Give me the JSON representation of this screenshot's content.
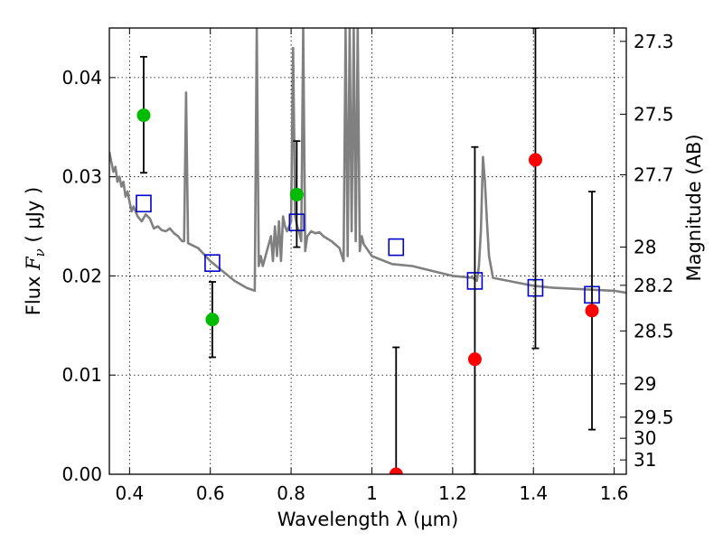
{
  "chart_data": {
    "type": "scatter",
    "xlabel": "Wavelength  λ (μm)",
    "ylabel": "Flux  F_ν  ( μJy )",
    "ylabel_parts": {
      "prefix": "Flux  ",
      "symbol": "F",
      "subscript": "ν",
      "suffix": "  ( μJy )"
    },
    "y2label": "Magnitude (AB)",
    "xlim": [
      0.35,
      1.63
    ],
    "ylim": [
      0.0,
      0.045
    ],
    "grid": true,
    "x_ticks": [
      0.4,
      0.6,
      0.8,
      1.0,
      1.2,
      1.4,
      1.6
    ],
    "x_tick_labels": [
      "0.4",
      "0.6",
      "0.8",
      "1",
      "1.2",
      "1.4",
      "1.6"
    ],
    "y_ticks": [
      0.0,
      0.01,
      0.02,
      0.03,
      0.04
    ],
    "y_tick_labels": [
      "0.00",
      "0.01",
      "0.02",
      "0.03",
      "0.04"
    ],
    "mag_ticks": [
      27.3,
      27.5,
      27.7,
      28,
      28.2,
      28.5,
      29,
      29.5,
      30,
      31
    ],
    "mag_tick_labels": [
      "27.3",
      "27.5",
      "27.7",
      "28",
      "28.2",
      "28.5",
      "29",
      "29.5",
      "30",
      "31"
    ],
    "colors": {
      "model": "#808080",
      "green": "#00bb00",
      "red": "#ff0000",
      "square": "#0000cc",
      "errorbar": "#000000",
      "grid": "#000000"
    },
    "model_spectrum": {
      "x": [
        0.35,
        0.355,
        0.36,
        0.365,
        0.37,
        0.375,
        0.38,
        0.385,
        0.39,
        0.395,
        0.4,
        0.405,
        0.41,
        0.42,
        0.43,
        0.44,
        0.45,
        0.46,
        0.47,
        0.48,
        0.49,
        0.5,
        0.51,
        0.52,
        0.53,
        0.535,
        0.54,
        0.545,
        0.55,
        0.57,
        0.6,
        0.63,
        0.66,
        0.69,
        0.71,
        0.715,
        0.72,
        0.725,
        0.73,
        0.74,
        0.75,
        0.755,
        0.76,
        0.765,
        0.77,
        0.775,
        0.78,
        0.785,
        0.79,
        0.795,
        0.8,
        0.805,
        0.81,
        0.815,
        0.82,
        0.825,
        0.83,
        0.835,
        0.84,
        0.85,
        0.86,
        0.87,
        0.88,
        0.9,
        0.92,
        0.93,
        0.935,
        0.94,
        0.945,
        0.95,
        0.955,
        0.96,
        0.965,
        0.97,
        0.975,
        0.98,
        1.0,
        1.05,
        1.1,
        1.15,
        1.2,
        1.25,
        1.26,
        1.265,
        1.27,
        1.275,
        1.28,
        1.285,
        1.29,
        1.3,
        1.35,
        1.4,
        1.45,
        1.5,
        1.55,
        1.6,
        1.63
      ],
      "y": [
        0.0325,
        0.0315,
        0.0305,
        0.031,
        0.0295,
        0.03,
        0.029,
        0.0295,
        0.028,
        0.0285,
        0.0275,
        0.0265,
        0.027,
        0.026,
        0.0255,
        0.0262,
        0.0258,
        0.0248,
        0.025,
        0.0246,
        0.0245,
        0.0248,
        0.0243,
        0.024,
        0.0235,
        0.0235,
        0.0385,
        0.0233,
        0.0232,
        0.0228,
        0.0215,
        0.0205,
        0.0195,
        0.0188,
        0.0185,
        0.045,
        0.021,
        0.022,
        0.021,
        0.0225,
        0.024,
        0.0215,
        0.025,
        0.022,
        0.0255,
        0.0215,
        0.026,
        0.025,
        0.0245,
        0.025,
        0.0255,
        0.043,
        0.026,
        0.025,
        0.0245,
        0.0235,
        0.045,
        0.0225,
        0.024,
        0.0245,
        0.0243,
        0.0244,
        0.024,
        0.0235,
        0.0228,
        0.0215,
        0.045,
        0.022,
        0.045,
        0.0245,
        0.045,
        0.0235,
        0.045,
        0.0225,
        0.024,
        0.0232,
        0.022,
        0.0212,
        0.021,
        0.0205,
        0.02,
        0.0198,
        0.0195,
        0.021,
        0.0245,
        0.032,
        0.0295,
        0.0255,
        0.022,
        0.0198,
        0.0194,
        0.019,
        0.0188,
        0.0187,
        0.0186,
        0.0185,
        0.0183
      ]
    },
    "photometry_green": [
      {
        "x": 0.435,
        "y": 0.0362,
        "yerr": [
          0.0304,
          0.0421
        ]
      },
      {
        "x": 0.605,
        "y": 0.0156,
        "yerr": [
          0.0118,
          0.0194
        ]
      },
      {
        "x": 0.814,
        "y": 0.0282,
        "yerr": [
          0.0229,
          0.0336
        ]
      }
    ],
    "photometry_red": [
      {
        "x": 1.06,
        "y": 0.0,
        "yerr": [
          0.0,
          0.0128
        ]
      },
      {
        "x": 1.255,
        "y": 0.0116,
        "yerr": [
          0.0,
          0.033
        ]
      },
      {
        "x": 1.405,
        "y": 0.0317,
        "yerr": [
          0.0127,
          0.045
        ]
      },
      {
        "x": 1.545,
        "y": 0.0165,
        "yerr": [
          0.0045,
          0.0285
        ]
      }
    ],
    "model_bands": [
      {
        "x": 0.435,
        "y": 0.0273
      },
      {
        "x": 0.605,
        "y": 0.0213
      },
      {
        "x": 0.814,
        "y": 0.0254
      },
      {
        "x": 1.06,
        "y": 0.0229
      },
      {
        "x": 1.255,
        "y": 0.0195
      },
      {
        "x": 1.405,
        "y": 0.0188
      },
      {
        "x": 1.545,
        "y": 0.0181
      }
    ]
  }
}
